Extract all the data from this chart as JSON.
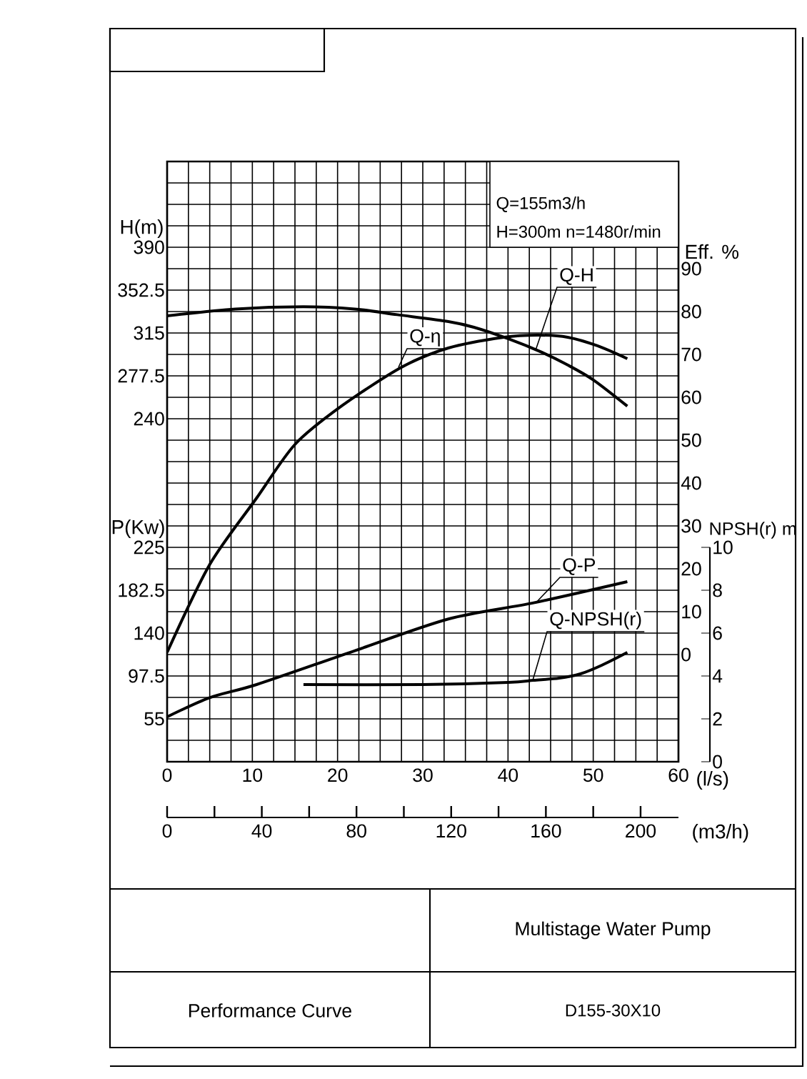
{
  "chart_data": [
    {
      "type": "line",
      "title": "Performance Curve",
      "subtitle": "Multistage Water Pump",
      "xlabel": "(l/s)",
      "ylabel": "H(m)",
      "y2label": "Eff. %",
      "x2label": "(m3/h)",
      "annotations": [
        "Q=155m3/h",
        "H=300m   n=1480r/min",
        "D155-30X10"
      ],
      "xlim": [
        0,
        60
      ],
      "xticks": [
        0,
        10,
        20,
        30,
        40,
        50,
        60
      ],
      "x2lim": [
        0,
        216
      ],
      "x2ticks": [
        0,
        40,
        80,
        120,
        160,
        200
      ],
      "ylim": [
        -60,
        465
      ],
      "yticks": [
        240,
        277.5,
        315,
        352.5,
        390
      ],
      "y2lim": [
        -25,
        115
      ],
      "y2ticks": [
        0,
        10,
        20,
        30,
        40,
        50,
        60,
        70,
        80,
        90
      ],
      "grid": true,
      "series": [
        {
          "name": "Q-H",
          "color": "#000000",
          "x": [
            0,
            8,
            16,
            22,
            27,
            33,
            36,
            40,
            44,
            47,
            50,
            54
          ],
          "values": [
            330,
            336,
            338,
            336,
            331,
            325,
            320,
            310,
            298,
            287,
            274,
            251
          ]
        },
        {
          "name": "Q-η",
          "color": "#000000",
          "axis": "y2",
          "x": [
            0,
            5,
            10.5,
            15,
            20.5,
            27.5,
            33,
            39.5,
            43.5,
            47,
            50.5,
            54
          ],
          "values": [
            0.5,
            21,
            36.5,
            49,
            58,
            67,
            71.5,
            74,
            74.5,
            74,
            72,
            69
          ]
        }
      ]
    },
    {
      "type": "line",
      "ylabel": "P(Kw)",
      "y2label": "NPSH(r) m",
      "xlim": [
        0,
        60
      ],
      "ylim": [
        12.5,
        607.5
      ],
      "yticks": [
        55,
        97.5,
        140,
        182.5,
        225
      ],
      "y2lim": [
        0,
        10
      ],
      "y2ticks": [
        0,
        2,
        4,
        6,
        8,
        10
      ],
      "tick_labels": "y",
      "series": [
        {
          "name": "Q-P",
          "color": "#000000",
          "x": [
            0,
            5,
            10.5,
            21.5,
            33,
            43,
            54
          ],
          "values": [
            57,
            76,
            89,
            121,
            154,
            170,
            191
          ]
        },
        {
          "name": "Q-NPSH(r)",
          "color": "#000000",
          "axis": "y2",
          "x": [
            16,
            30,
            40,
            43,
            46,
            48.5,
            51,
            54
          ],
          "values": [
            3.6,
            3.6,
            3.7,
            3.8,
            3.9,
            4.1,
            4.5,
            5.1
          ]
        }
      ]
    }
  ]
}
